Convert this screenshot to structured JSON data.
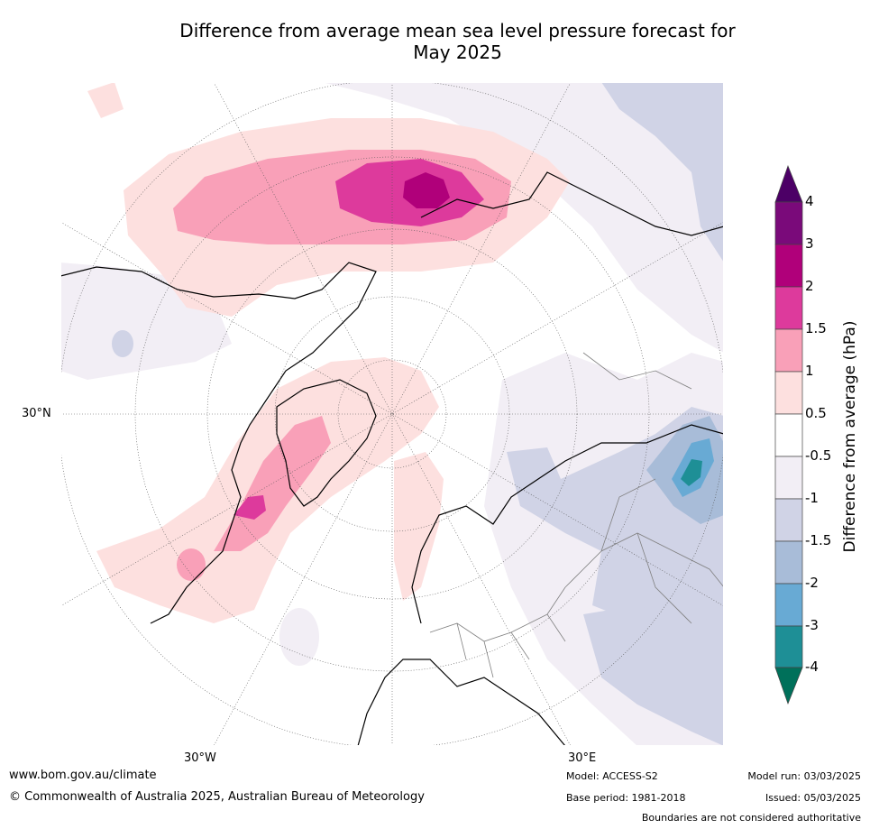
{
  "title_line1": "Difference from average mean sea level pressure forecast for",
  "title_line2": "May 2025",
  "map": {
    "lat_label": "30°N",
    "lon_labels": [
      "30°W",
      "30°E"
    ],
    "colors": {
      "ocean_bg": "#ffffff",
      "coast": "#000000",
      "borders": "#808080",
      "grid": "#555555"
    }
  },
  "colorbar": {
    "title": "Difference from average (hPa)",
    "ticks": [
      "4",
      "3",
      "2",
      "1.5",
      "1",
      "0.5",
      "-0.5",
      "-1",
      "-1.5",
      "-2",
      "-3",
      "-4"
    ],
    "colors_top_to_bottom": [
      "#7a0a7a",
      "#b0007a",
      "#dd3a9c",
      "#f9a0b8",
      "#fde0df",
      "#ffffff",
      "#f2eef5",
      "#d0d3e6",
      "#a8bcd8",
      "#68aad4",
      "#1e8f96"
    ],
    "over_color": "#4c0066",
    "under_color": "#00705a"
  },
  "footer": {
    "website": "www.bom.gov.au/climate",
    "copyright": "© Commonwealth of Australia 2025, Australian Bureau of Meteorology",
    "model": "Model: ACCESS-S2",
    "base_period": "Base period: 1981-2018",
    "model_run": "Model run: 03/03/2025",
    "issued": "Issued: 05/03/2025",
    "disclaimer": "Boundaries are not considered authoritative"
  }
}
